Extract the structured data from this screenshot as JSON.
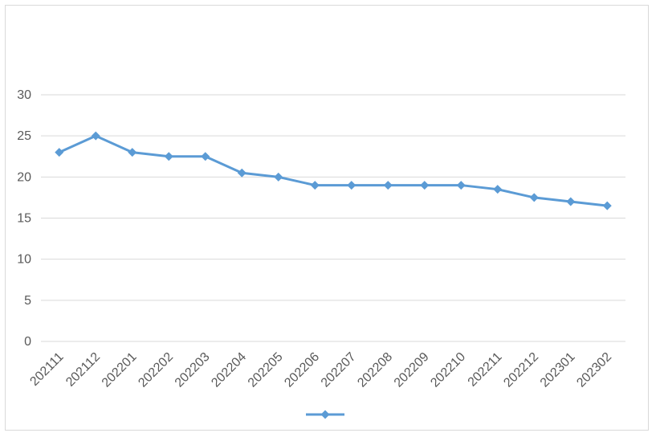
{
  "chart_data": {
    "type": "line",
    "title": "",
    "xlabel": "",
    "ylabel": "",
    "categories": [
      "202111",
      "202112",
      "202201",
      "202202",
      "202203",
      "202204",
      "202205",
      "202206",
      "202207",
      "202208",
      "202209",
      "202210",
      "202211",
      "202212",
      "202301",
      "202302"
    ],
    "series": [
      {
        "name": "",
        "values": [
          23,
          25,
          23,
          22.5,
          22.5,
          20.5,
          20,
          19,
          19,
          19,
          19,
          19,
          18.5,
          17.5,
          17,
          16.5
        ]
      }
    ],
    "ylim": [
      0,
      30
    ],
    "yticks": [
      0,
      5,
      10,
      15,
      20,
      25,
      30
    ],
    "grid": true,
    "legend": "bottom",
    "colors": {
      "line": "#5b9bd5",
      "grid": "#d9d9d9",
      "axis": "#d9d9d9",
      "text": "#595959"
    }
  }
}
